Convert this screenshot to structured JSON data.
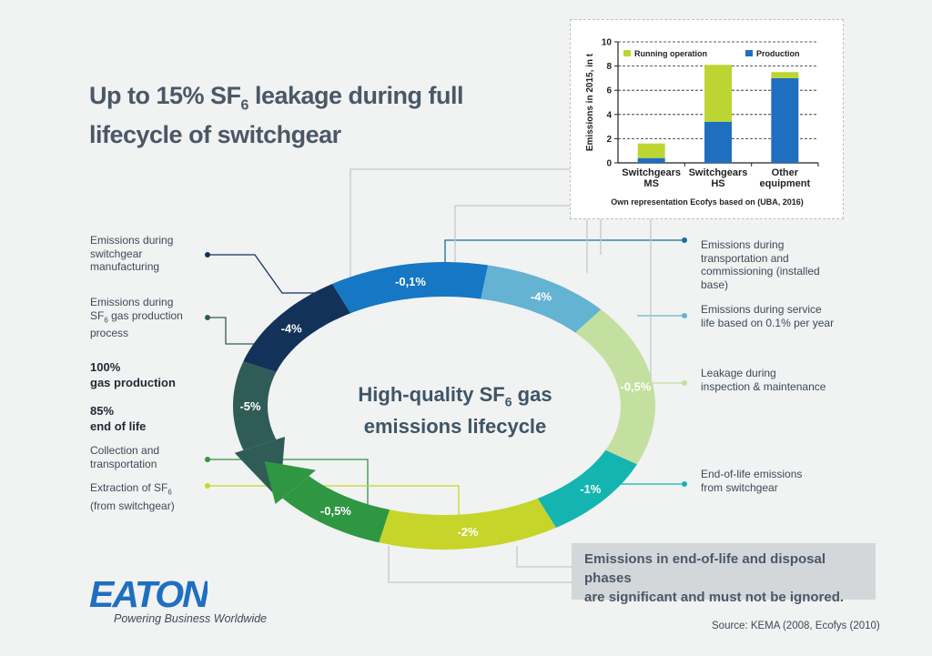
{
  "title": {
    "line1_pre": "Up to 15% SF",
    "line1_sub": "6",
    "line1_post": " leakage during full",
    "line2": "lifecycle of switchgear"
  },
  "center": {
    "pre": "High-quality SF",
    "sub": "6",
    "post": " gas",
    "line2": "emissions lifecycle"
  },
  "left_labels": {
    "manufacturing": "Emissions during switchgear manufacturing",
    "production_pre": "Emissions during SF",
    "production_sub": "6",
    "production_post": " gas production process",
    "gas_production_pct": "100%",
    "gas_production": "gas production",
    "end_of_life_pct": "85%",
    "end_of_life": "end of life",
    "collection": "Collection and transportation",
    "extraction_pre": "Extraction of SF",
    "extraction_sub": "6",
    "extraction_post": " (from switchgear)"
  },
  "right_labels": {
    "transport": "Emissions during transportation and commissioning (installed base)",
    "service": "Emissions during service life based on 0.1% per year",
    "inspection": "Leakage during inspection & maintenance",
    "eol": "End-of-life emissions from switchgear"
  },
  "segments": [
    {
      "label": "-5%",
      "color": "#2f5c56"
    },
    {
      "label": "-4%",
      "color": "#12325a"
    },
    {
      "label": "-0,1%",
      "color": "#1677c4"
    },
    {
      "label": "-4%",
      "color": "#64b3d3"
    },
    {
      "label": "-0,5%",
      "color": "#c3e0a0"
    },
    {
      "label": "-1%",
      "color": "#14b5b0"
    },
    {
      "label": "-2%",
      "color": "#c6d52a"
    },
    {
      "label": "-0,5%",
      "color": "#2f9642"
    }
  ],
  "conclusion": {
    "line1": "Emissions in end-of-life and disposal phases",
    "line2": "are significant and must not be ignored."
  },
  "logo": {
    "text": "EATON",
    "tagline": "Powering Business Worldwide",
    "color": "#1f6fc1"
  },
  "source": "Source: KEMA (2008, Ecofys (2010)",
  "chart_data": {
    "type": "bar",
    "stacked": true,
    "categories": [
      [
        "Switchgears",
        "MS"
      ],
      [
        "Switchgears",
        "HS"
      ],
      [
        "Other",
        "equipment"
      ]
    ],
    "series": [
      {
        "name": "Production",
        "color": "#1f6fc1",
        "values": [
          0.4,
          3.4,
          7.0
        ]
      },
      {
        "name": "Running operation",
        "color": "#bcd532",
        "values": [
          1.2,
          4.7,
          0.5
        ]
      }
    ],
    "ylabel": "Emissions in 2015, in t",
    "ylim": [
      0,
      10
    ],
    "yticks": [
      0,
      2,
      4,
      6,
      8,
      10
    ],
    "grid": true,
    "legend": "top",
    "caption": "Own representation Ecofys based on (UBA, 2016)"
  }
}
